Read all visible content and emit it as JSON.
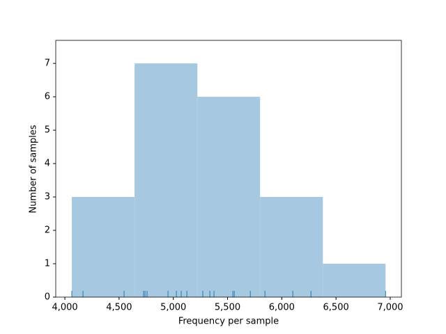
{
  "chart_data": {
    "type": "histogram",
    "xlabel": "Frequency per sample",
    "ylabel": "Number of samples",
    "bins": [
      4064,
      4643,
      5222,
      5800,
      6379,
      6957
    ],
    "counts": [
      3,
      7,
      6,
      3,
      1
    ],
    "color": "#a6c8e0",
    "rug": [
      4064,
      4167,
      4546,
      4726,
      4739,
      4758,
      4951,
      5028,
      5073,
      5125,
      5272,
      5337,
      5375,
      5549,
      5562,
      5710,
      5845,
      6102,
      6269,
      6957
    ],
    "rug_color": "#1f77b4",
    "xlim": [
      3916,
      7103
    ],
    "ylim": [
      0,
      7.69
    ],
    "xticks": [
      {
        "value": 4000,
        "label": "4,000"
      },
      {
        "value": 4500,
        "label": "4,500"
      },
      {
        "value": 5000,
        "label": "5,000"
      },
      {
        "value": 5500,
        "label": "5,500"
      },
      {
        "value": 6000,
        "label": "6,000"
      },
      {
        "value": 6500,
        "label": "6,500"
      },
      {
        "value": 7000,
        "label": "7,000"
      }
    ],
    "yticks": [
      0,
      1,
      2,
      3,
      4,
      5,
      6,
      7
    ]
  }
}
